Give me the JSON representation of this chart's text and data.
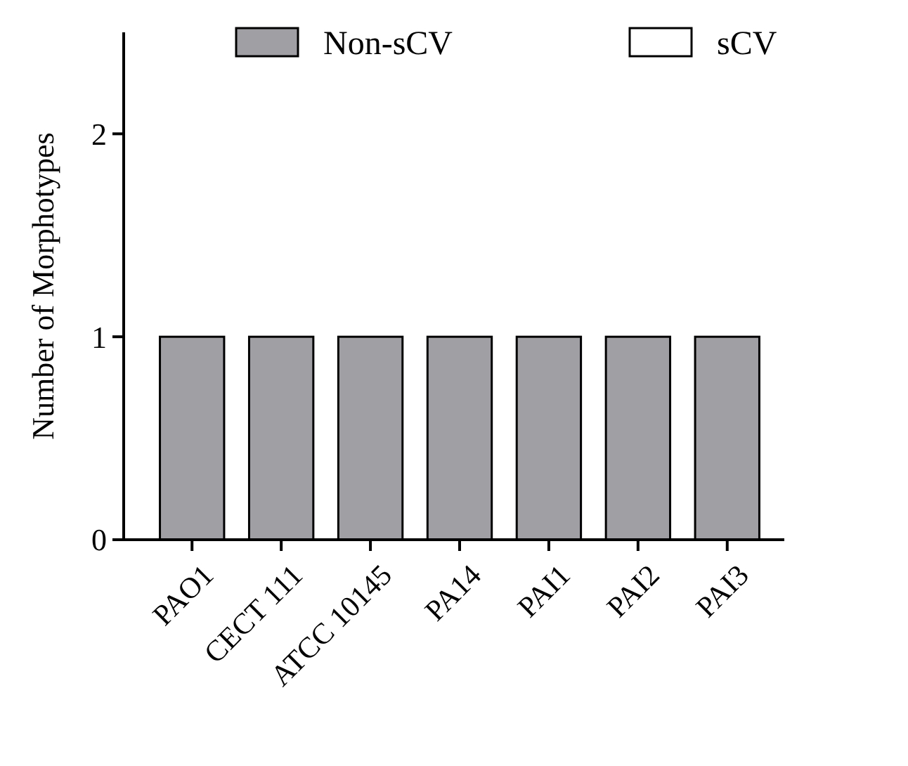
{
  "chart_data": {
    "type": "bar",
    "ylabel": "Number of Morphotypes",
    "categories": [
      "PAO1",
      "CECT 111",
      "ATCC 10145",
      "PA14",
      "PAI1",
      "PAI2",
      "PAI3"
    ],
    "series": [
      {
        "name": "Non-sCV",
        "color": "#a09fa4",
        "values": [
          1,
          1,
          1,
          1,
          1,
          1,
          1
        ]
      },
      {
        "name": "sCV",
        "color": "#ffffff",
        "values": [
          0,
          0,
          0,
          0,
          0,
          0,
          0
        ]
      }
    ],
    "stacked": true,
    "ylim": [
      0,
      2.5
    ],
    "yticks": [
      0,
      1,
      2
    ],
    "legend": "top",
    "grid": false
  }
}
